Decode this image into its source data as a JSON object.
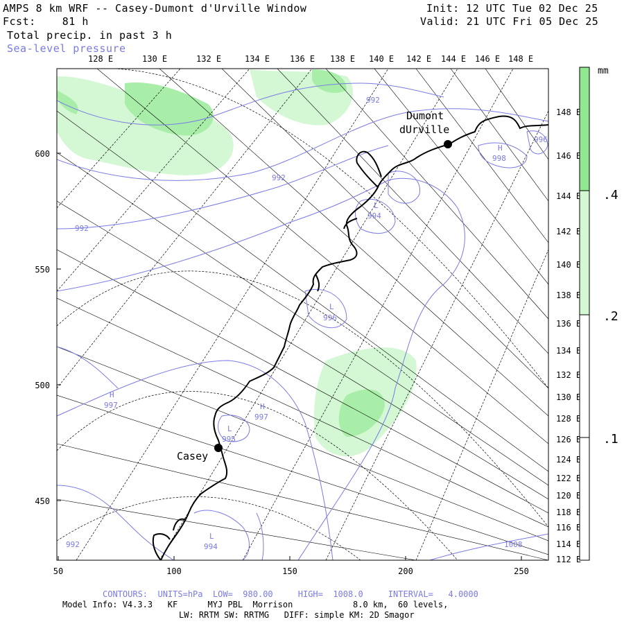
{
  "header": {
    "title": "AMPS 8 km WRF -- Casey-Dumont d'Urville Window",
    "forecast_label": "Fcst:",
    "forecast_hours": "81 h",
    "field_1": "Total precip. in past 3 h",
    "field_2": "Sea-level pressure",
    "init": "Init: 12 UTC Tue 02 Dec 25",
    "valid": "Valid: 21 UTC Fri 05 Dec 25"
  },
  "map": {
    "top_lon_labels": [
      "128 E",
      "130 E",
      "132 E",
      "134 E",
      "136 E",
      "138 E",
      "140 E",
      "142 E",
      "144 E",
      "146 E",
      "148 E"
    ],
    "right_lon_labels": [
      "148 E",
      "146 E",
      "144 E",
      "142 E",
      "140 E",
      "138 E",
      "136 E",
      "134 E",
      "132 E",
      "130 E",
      "128 E",
      "126 E",
      "124 E",
      "122 E",
      "120 E",
      "118 E",
      "116 E",
      "114 E",
      "112 E"
    ],
    "x_ticks": [
      "50",
      "100",
      "150",
      "200",
      "250"
    ],
    "y_ticks": [
      "600",
      "550",
      "500",
      "450"
    ],
    "stations": [
      {
        "name_line1": "Dumont",
        "name_line2": "dUrville"
      },
      {
        "name": "Casey"
      }
    ],
    "pressure_labels": [
      {
        "text": "992"
      },
      {
        "text": "992"
      },
      {
        "text": "992"
      },
      {
        "text": "992"
      },
      {
        "text": "L",
        "value": "994"
      },
      {
        "text": "L",
        "value": "996"
      },
      {
        "text": "H",
        "value": "998"
      },
      {
        "text": "H",
        "value": "997"
      },
      {
        "text": "H",
        "value": "997"
      },
      {
        "text": "L",
        "value": "995"
      },
      {
        "text": "L",
        "value": "994"
      },
      {
        "text": "1008"
      },
      {
        "text": "996"
      }
    ]
  },
  "colorbar": {
    "unit": "mm",
    "labels": [
      ".4",
      ".2",
      ".1"
    ],
    "colors": [
      "#90e890",
      "#d4f7d4",
      "#ffffff"
    ]
  },
  "footer": {
    "contours": "CONTOURS:  UNITS=hPa  LOW=  980.00     HIGH=  1008.0     INTERVAL=   4.0000",
    "model_info": "Model Info: V4.3.3   KF      MYJ PBL  Morrison            8.0 km,  60 levels,",
    "physics": "LW: RRTM SW: RRTMG   DIFF: simple KM: 2D Smagor"
  },
  "colors": {
    "contour": "#7a7ae6",
    "precip_light": "#d4f7d4",
    "precip_mid": "#a8eea8",
    "precip_high": "#90e890"
  }
}
